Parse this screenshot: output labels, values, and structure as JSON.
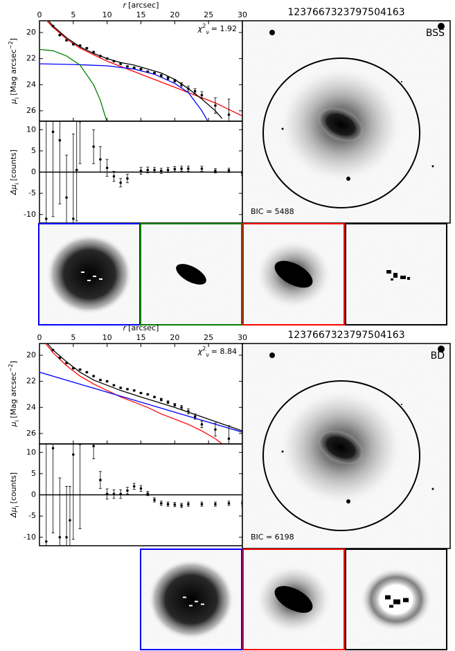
{
  "chart_data": [
    {
      "type": "line",
      "x_label": {
        "symbol": "r",
        "text": "[arcsec]"
      },
      "xlim": [
        0,
        30
      ],
      "xticks": [
        0,
        5,
        10,
        15,
        20,
        25,
        30
      ],
      "y_label": {
        "symbol": "μ",
        "sub": "i",
        "text": "[Mag arcsec",
        "sup": "−2",
        "end": "]"
      },
      "ylim": [
        26.8,
        19.1
      ],
      "yticks": [
        20,
        22,
        24,
        26
      ],
      "annotation": {
        "symbol": "χ",
        "sup": "2",
        "sub": "ν",
        "text": "= 1.92"
      },
      "points": {
        "color": "#000000",
        "x": [
          2,
          3,
          4,
          5,
          6,
          7,
          8,
          9,
          10,
          11,
          12,
          13,
          14,
          15,
          16,
          17,
          18,
          19,
          20,
          21,
          22,
          23,
          24,
          26,
          28
        ],
        "values": [
          19.5,
          20.2,
          20.6,
          20.9,
          21.0,
          21.2,
          21.5,
          21.8,
          22.0,
          22.2,
          22.4,
          22.6,
          22.7,
          22.8,
          23.0,
          23.1,
          23.3,
          23.5,
          23.7,
          24.0,
          24.3,
          24.5,
          24.8,
          25.6,
          26.3
        ],
        "errors": [
          0.05,
          0.05,
          0.05,
          0.05,
          0.05,
          0.05,
          0.05,
          0.05,
          0.05,
          0.05,
          0.05,
          0.05,
          0.05,
          0.05,
          0.05,
          0.05,
          0.1,
          0.1,
          0.1,
          0.15,
          0.2,
          0.2,
          0.25,
          0.6,
          1.2
        ]
      },
      "series": [
        {
          "color": "#ff0000",
          "x": [
            0,
            2,
            4,
            6,
            8,
            10,
            12,
            14,
            16,
            18,
            20,
            22,
            24,
            26,
            28,
            30
          ],
          "values": [
            18.5,
            19.6,
            20.5,
            21.2,
            21.7,
            22.2,
            22.6,
            23.0,
            23.4,
            23.8,
            24.2,
            24.6,
            25.0,
            25.4,
            25.9,
            26.4
          ]
        },
        {
          "color": "#0000ff",
          "x": [
            0,
            5,
            10,
            14,
            17,
            20,
            22,
            24,
            25
          ],
          "values": [
            22.4,
            22.45,
            22.55,
            22.8,
            23.2,
            23.9,
            24.6,
            26.0,
            26.9
          ]
        },
        {
          "color": "#008000",
          "x": [
            0,
            2,
            4,
            6,
            8,
            9,
            10
          ],
          "values": [
            21.3,
            21.4,
            21.8,
            22.5,
            24.0,
            25.2,
            26.9
          ]
        },
        {
          "color": "#000000",
          "x": [
            0,
            2,
            4,
            6,
            8,
            10,
            12,
            14,
            16,
            18,
            20,
            22,
            24,
            26,
            27
          ],
          "values": [
            18.3,
            19.5,
            20.4,
            21.1,
            21.6,
            22.0,
            22.3,
            22.5,
            22.8,
            23.1,
            23.6,
            24.3,
            25.1,
            26.0,
            26.6
          ]
        }
      ]
    },
    {
      "type": "residual",
      "xlim": [
        0,
        30
      ],
      "y_label": {
        "symbol": "Δμ",
        "sub": "i",
        "text": "[counts]"
      },
      "ylim": [
        -12,
        12
      ],
      "yticks": [
        -10,
        -5,
        0,
        5,
        10
      ],
      "zero_line": true,
      "points": {
        "color": "#000000",
        "x": [
          1,
          2,
          3,
          4,
          5,
          5.5,
          6,
          8,
          9,
          10,
          11,
          12,
          13,
          15,
          16,
          17,
          18,
          19,
          20,
          21,
          22,
          24,
          26,
          28,
          30
        ],
        "values": [
          -11,
          9.5,
          7.5,
          -6,
          -11,
          0.5,
          12,
          6,
          3,
          1,
          -1,
          -2.5,
          -1.5,
          0.3,
          0.5,
          0.5,
          0.3,
          0.5,
          0.7,
          0.8,
          0.8,
          0.8,
          0.3,
          0.4,
          -0.3
        ],
        "errors": [
          30,
          20,
          15,
          10,
          20,
          12,
          10,
          4,
          3,
          2,
          1.2,
          1,
          1,
          0.8,
          0.7,
          0.6,
          0.6,
          0.6,
          0.6,
          0.6,
          0.6,
          0.6,
          0.5,
          0.5,
          0.5
        ]
      }
    },
    {
      "type": "line",
      "x_label": {
        "symbol": "r",
        "text": "[arcsec]"
      },
      "xlim": [
        0,
        30
      ],
      "xticks": [
        0,
        5,
        10,
        15,
        20,
        25,
        30
      ],
      "y_label": {
        "symbol": "μ",
        "sub": "i",
        "text": "[Mag arcsec",
        "sup": "−2",
        "end": "]"
      },
      "ylim": [
        26.8,
        19.1
      ],
      "yticks": [
        20,
        22,
        24,
        26
      ],
      "annotation": {
        "symbol": "χ",
        "sup": "2",
        "sub": "ν",
        "text": "= 8.84"
      },
      "points": {
        "color": "#000000",
        "x": [
          2,
          3,
          4,
          5,
          6,
          7,
          8,
          9,
          10,
          11,
          12,
          13,
          14,
          15,
          16,
          17,
          18,
          19,
          20,
          21,
          22,
          23,
          24,
          26,
          28
        ],
        "values": [
          19.6,
          20.2,
          20.6,
          21.0,
          21.1,
          21.3,
          21.6,
          21.9,
          22.0,
          22.3,
          22.5,
          22.6,
          22.7,
          22.9,
          23.0,
          23.2,
          23.4,
          23.6,
          23.8,
          24.0,
          24.3,
          24.7,
          25.3,
          25.7,
          26.4
        ],
        "errors": [
          0.05,
          0.05,
          0.05,
          0.05,
          0.05,
          0.05,
          0.05,
          0.05,
          0.05,
          0.05,
          0.05,
          0.05,
          0.05,
          0.05,
          0.05,
          0.05,
          0.1,
          0.1,
          0.1,
          0.15,
          0.2,
          0.2,
          0.25,
          0.5,
          1.0
        ]
      },
      "series": [
        {
          "color": "#ff0000",
          "x": [
            0,
            2,
            4,
            6,
            8,
            10,
            12,
            14,
            16,
            18,
            20,
            22,
            24,
            26,
            27
          ],
          "values": [
            18.5,
            19.8,
            20.8,
            21.6,
            22.2,
            22.7,
            23.2,
            23.6,
            24.0,
            24.5,
            24.9,
            25.3,
            25.8,
            26.4,
            26.8
          ]
        },
        {
          "color": "#0000ff",
          "x": [
            0,
            30
          ],
          "values": [
            21.3,
            25.9
          ]
        },
        {
          "color": "#000000",
          "x": [
            0,
            2,
            4,
            6,
            8,
            10,
            12,
            15,
            20,
            25,
            30
          ],
          "values": [
            18.4,
            19.6,
            20.5,
            21.3,
            21.9,
            22.3,
            22.7,
            23.2,
            24.0,
            24.9,
            25.8
          ]
        }
      ]
    },
    {
      "type": "residual",
      "xlim": [
        0,
        30
      ],
      "y_label": {
        "symbol": "Δμ",
        "sub": "i",
        "text": "[counts]"
      },
      "ylim": [
        -12,
        12
      ],
      "yticks": [
        -10,
        -5,
        0,
        5,
        10
      ],
      "zero_line": true,
      "points": {
        "color": "#000000",
        "x": [
          1,
          2,
          3,
          4,
          4.5,
          5,
          6,
          8,
          9,
          10,
          11,
          12,
          13,
          14,
          15,
          16,
          17,
          18,
          19,
          20,
          21,
          22,
          24,
          26,
          28,
          30
        ],
        "values": [
          -11,
          11,
          -10,
          -10,
          -6,
          9.5,
          12,
          11.5,
          3.5,
          0.2,
          0.2,
          0.2,
          1,
          2,
          1.5,
          0.3,
          -1.2,
          -2,
          -2.2,
          -2.3,
          -2.5,
          -2.2,
          -2.2,
          -2.2,
          -2.0,
          -2.0
        ],
        "errors": [
          25,
          20,
          14,
          12,
          8,
          20,
          20,
          3,
          2,
          1.2,
          1,
          1,
          0.8,
          0.7,
          0.7,
          0.5,
          0.5,
          0.5,
          0.5,
          0.5,
          0.5,
          0.5,
          0.5,
          0.5,
          0.5,
          0.5
        ]
      }
    }
  ],
  "panels": [
    {
      "title": "1237667323797504163",
      "label": "BSS",
      "bic": "BIC = 5488"
    },
    {
      "title": "1237667323797504163",
      "label": "BD",
      "bic": "BIC = 6198"
    }
  ]
}
